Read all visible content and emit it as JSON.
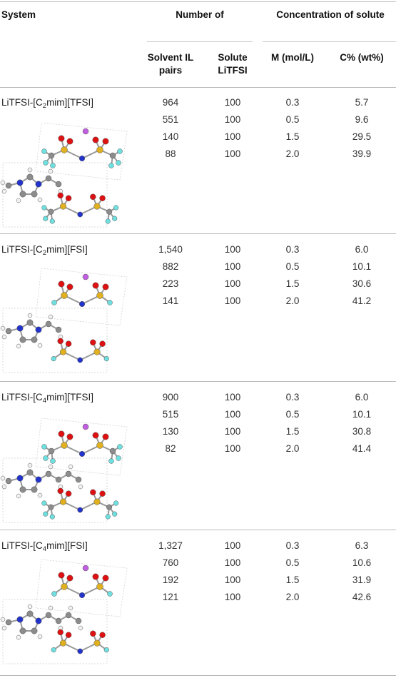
{
  "header": {
    "system": "System",
    "number_of": "Number of",
    "concentration": "Concentration of solute",
    "solvent": "Solvent IL pairs",
    "solute": "Solute LiTFSI",
    "molarity": "M (mol/L)",
    "wt": "C% (wt%)"
  },
  "systems": [
    {
      "prefix": "LiTFSI-[C",
      "sub": "2",
      "suffix": "mim][TFSI]",
      "rows": [
        {
          "solvent": "964",
          "solute": "100",
          "m": "0.3",
          "c": "5.7"
        },
        {
          "solvent": "551",
          "solute": "100",
          "m": "0.5",
          "c": "9.6"
        },
        {
          "solvent": "140",
          "solute": "100",
          "m": "1.5",
          "c": "29.5"
        },
        {
          "solvent": "88",
          "solute": "100",
          "m": "2.0",
          "c": "39.9"
        }
      ]
    },
    {
      "prefix": "LiTFSI-[C",
      "sub": "2",
      "suffix": "mim][FSI]",
      "rows": [
        {
          "solvent": "1,540",
          "solute": "100",
          "m": "0.3",
          "c": "6.0"
        },
        {
          "solvent": "882",
          "solute": "100",
          "m": "0.5",
          "c": "10.1"
        },
        {
          "solvent": "223",
          "solute": "100",
          "m": "1.5",
          "c": "30.6"
        },
        {
          "solvent": "141",
          "solute": "100",
          "m": "2.0",
          "c": "41.2"
        }
      ]
    },
    {
      "prefix": "LiTFSI-[C",
      "sub": "4",
      "suffix": "mim][TFSI]",
      "rows": [
        {
          "solvent": "900",
          "solute": "100",
          "m": "0.3",
          "c": "6.0"
        },
        {
          "solvent": "515",
          "solute": "100",
          "m": "0.5",
          "c": "10.1"
        },
        {
          "solvent": "130",
          "solute": "100",
          "m": "1.5",
          "c": "30.8"
        },
        {
          "solvent": "82",
          "solute": "100",
          "m": "2.0",
          "c": "41.4"
        }
      ]
    },
    {
      "prefix": "LiTFSI-[C",
      "sub": "4",
      "suffix": "mim][FSI]",
      "rows": [
        {
          "solvent": "1,327",
          "solute": "100",
          "m": "0.3",
          "c": "6.3"
        },
        {
          "solvent": "760",
          "solute": "100",
          "m": "0.5",
          "c": "10.6"
        },
        {
          "solvent": "192",
          "solute": "100",
          "m": "1.5",
          "c": "31.9"
        },
        {
          "solvent": "121",
          "solute": "100",
          "m": "2.0",
          "c": "42.6"
        }
      ]
    }
  ],
  "atom_colors": {
    "carbon": "#8c8c8c",
    "hydrogen": "#f2f2f2",
    "nitrogen": "#2233cc",
    "oxygen": "#dd1111",
    "sulfur": "#e0b020",
    "fluorine": "#6ee0e0",
    "lithium": "#c060e0"
  }
}
